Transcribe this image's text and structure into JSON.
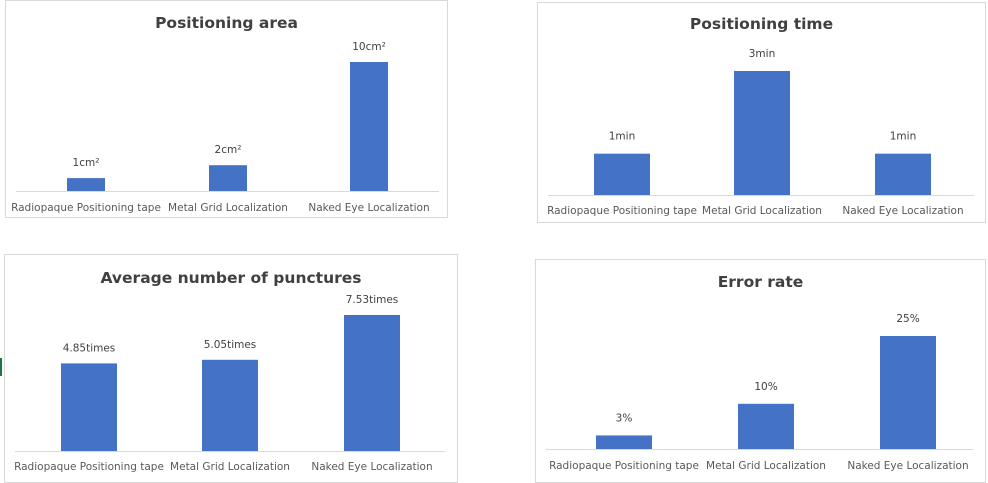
{
  "colors": {
    "bar": "#4472c4",
    "axis": "#d9d9d9",
    "text": "#404040",
    "edge": "#217346"
  },
  "chart_data": [
    {
      "type": "bar",
      "title": "Positioning area",
      "categories": [
        "Radiopaque Positioning tape",
        "Metal Grid Localization",
        "Naked Eye Localization"
      ],
      "values": [
        1,
        2,
        10
      ],
      "data_labels": [
        "1cm²",
        "2cm²",
        "10cm²"
      ],
      "xlabel": "",
      "ylabel": "",
      "ylim": [
        0,
        10
      ],
      "grid": false,
      "legend": "none"
    },
    {
      "type": "bar",
      "title": "Positioning time",
      "categories": [
        "Radiopaque Positioning tape",
        "Metal Grid Localization",
        "Naked Eye Localization"
      ],
      "values": [
        1,
        3,
        1
      ],
      "data_labels": [
        "1min",
        "3min",
        "1min"
      ],
      "xlabel": "",
      "ylabel": "",
      "ylim": [
        0,
        3
      ],
      "grid": false,
      "legend": "none"
    },
    {
      "type": "bar",
      "title": "Average number of punctures",
      "categories": [
        "Radiopaque Positioning tape",
        "Metal Grid Localization",
        "Naked Eye Localization"
      ],
      "values": [
        4.85,
        5.05,
        7.53
      ],
      "data_labels": [
        "4.85times",
        "5.05times",
        "7.53times"
      ],
      "xlabel": "",
      "ylabel": "",
      "ylim": [
        0,
        7.53
      ],
      "grid": false,
      "legend": "none"
    },
    {
      "type": "bar",
      "title": "Error rate",
      "categories": [
        "Radiopaque Positioning tape",
        "Metal Grid Localization",
        "Naked Eye Localization"
      ],
      "values": [
        3,
        10,
        25
      ],
      "data_labels": [
        "3%",
        "10%",
        "25%"
      ],
      "xlabel": "",
      "ylabel": "",
      "ylim": [
        0,
        25
      ],
      "grid": false,
      "legend": "none"
    }
  ]
}
